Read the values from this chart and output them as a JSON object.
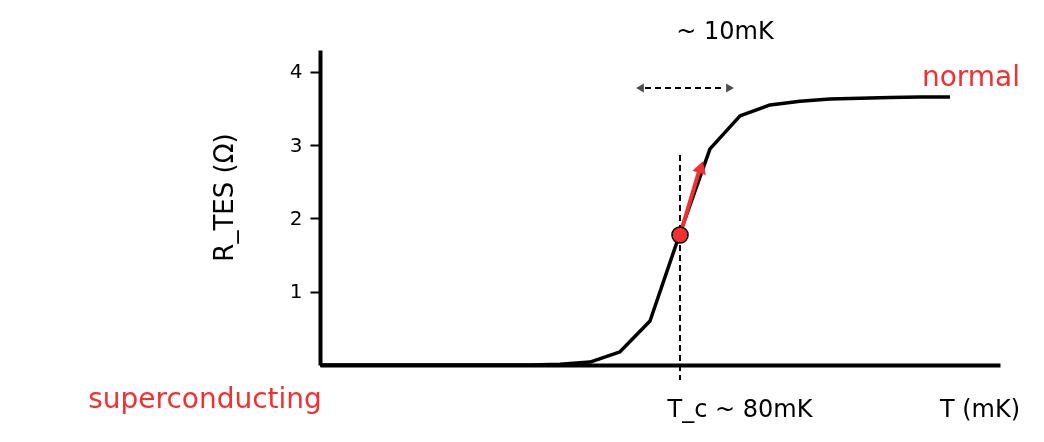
{
  "chart_data": {
    "type": "line",
    "xlabel": "T (mK)",
    "ylabel": "R_TES (Ω)",
    "categories": [
      null,
      null,
      null,
      null,
      null,
      null,
      null,
      null,
      null,
      null,
      null,
      null,
      null,
      null,
      null,
      null,
      null,
      null,
      null,
      null,
      null,
      null
    ],
    "series": [
      {
        "color": "#000000",
        "values": [
          0,
          0,
          0,
          0,
          0,
          0,
          0,
          0,
          0.01,
          0.04,
          0.18,
          0.6,
          1.8,
          2.95,
          3.4,
          3.55,
          3.6,
          3.63,
          3.64,
          3.65,
          3.66,
          3.66
        ]
      }
    ],
    "ylim": [
      0,
      4.3
    ],
    "yticks": [
      1,
      2,
      3,
      4
    ],
    "tick_labels": "y",
    "grid": false,
    "marker": "none",
    "line_style": "solid",
    "annotations": [
      "~ 10mK",
      "normal",
      "superconducting",
      "T_c ~ 80mK"
    ]
  }
}
